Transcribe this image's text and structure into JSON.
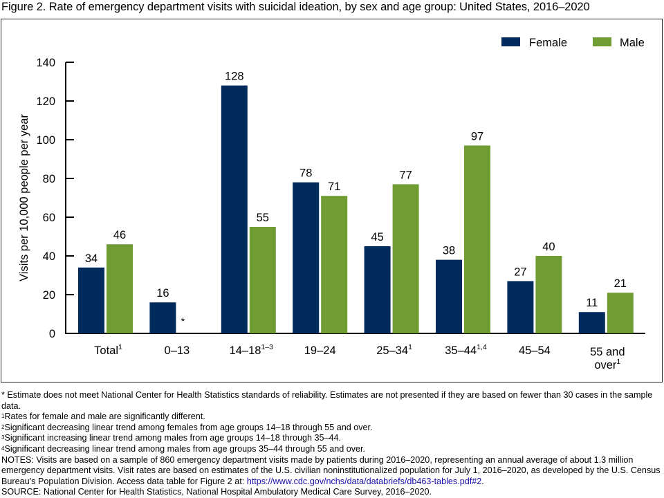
{
  "figure_title": "Figure 2. Rate of emergency department visits with suicidal ideation, by sex and age group: United States, 2016–2020",
  "chart_data": {
    "type": "bar",
    "title": "Rate of emergency department visits with suicidal ideation, by sex and age group: United States, 2016–2020",
    "xlabel": "",
    "ylabel": "Visits per 10,000 people per year",
    "ylim": [
      0,
      140
    ],
    "yticks": [
      0,
      20,
      40,
      60,
      80,
      100,
      120,
      140
    ],
    "grid": false,
    "legend_position": "top-right",
    "categories": [
      {
        "label": "Total",
        "sup": "1"
      },
      {
        "label": "0–13",
        "sup": ""
      },
      {
        "label": "14–18",
        "sup": "1–3"
      },
      {
        "label": "19–24",
        "sup": ""
      },
      {
        "label": "25–34",
        "sup": "1"
      },
      {
        "label": "35–44",
        "sup": "1,4"
      },
      {
        "label": "45–54",
        "sup": ""
      },
      {
        "label": "55 and over",
        "line1": "55 and",
        "line2": "over",
        "sup": "1"
      }
    ],
    "series": [
      {
        "name": "Female",
        "color": "#002b5c",
        "values": [
          34,
          16,
          128,
          78,
          45,
          38,
          27,
          11
        ],
        "labels": [
          "34",
          "16",
          "128",
          "78",
          "45",
          "38",
          "27",
          "11"
        ]
      },
      {
        "name": "Male",
        "color": "#6f9d34",
        "values": [
          46,
          null,
          55,
          71,
          77,
          97,
          40,
          21
        ],
        "labels": [
          "46",
          "*",
          "55",
          "71",
          "77",
          "97",
          "40",
          "21"
        ]
      }
    ]
  },
  "footnotes": {
    "asterisk": "* Estimate does not meet National Center for Health Statistics standards of reliability. Estimates are not presented if they are based on fewer than 30 cases in the sample data.",
    "n1_sup": "1",
    "n1": "Rates for female and male are significantly different.",
    "n2_sup": "2",
    "n2": "Significant decreasing linear trend among females from age groups 14–18 through 55 and over.",
    "n3_sup": "3",
    "n3": "Significant increasing linear trend among males from age groups 14–18 through 35–44.",
    "n4_sup": "4",
    "n4": "Significant decreasing linear trend among males from age groups 35–44 through 55 and over.",
    "notes": "NOTES: Visits are based on a sample of 860 emergency department visits made by patients during 2016–2020, representing an annual average of about 1.3 million emergency department visits. Visit rates are based on estimates of the U.S. civilian noninstitutionalized population for July 1, 2016–2020, as developed by the U.S. Census Bureau’s Population Division. Access data table for Figure 2 at: ",
    "link": "https://www.cdc.gov/nchs/data/databriefs/db463-tables.pdf#2",
    "notes_end": ".",
    "source": "SOURCE: National Center for Health Statistics, National Hospital Ambulatory Medical Care Survey, 2016–2020."
  }
}
